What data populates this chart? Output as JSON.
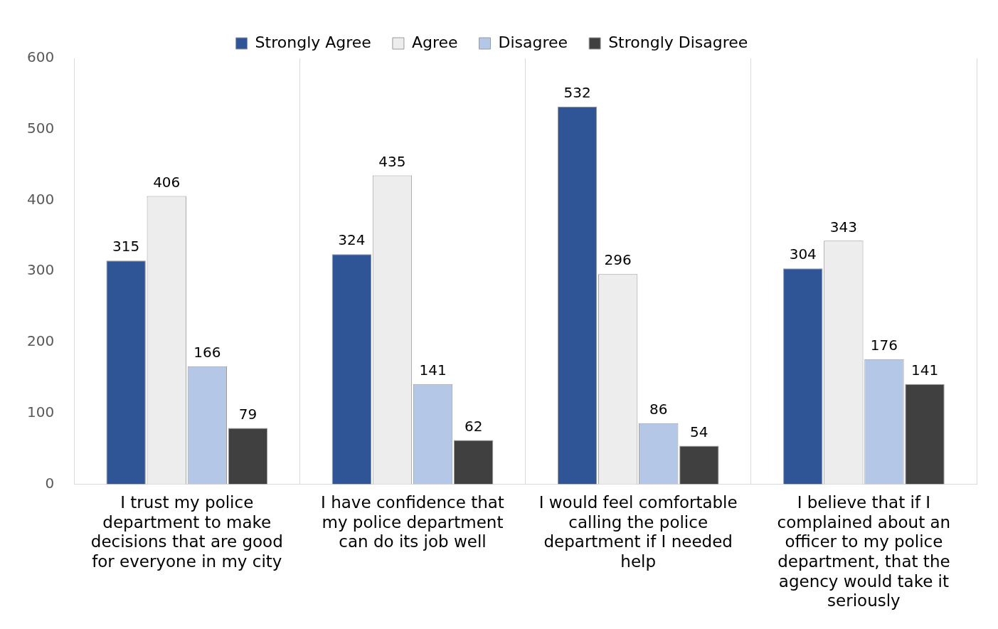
{
  "chart_data": {
    "type": "bar",
    "categories": [
      "I trust my police department to make decisions that are good for everyone in my city",
      "I have confidence that my police department can do its job well",
      "I would feel comfortable calling the police department if I needed help",
      "I believe that if I complained about an officer to my police department, that the agency would take it seriously"
    ],
    "series": [
      {
        "name": "Strongly Agree",
        "color": "#2f5597",
        "values": [
          315,
          324,
          532,
          304
        ]
      },
      {
        "name": "Agree",
        "color": "#ededed",
        "values": [
          406,
          435,
          296,
          343
        ]
      },
      {
        "name": "Disagree",
        "color": "#b4c7e7",
        "values": [
          166,
          141,
          86,
          176
        ]
      },
      {
        "name": "Strongly Disagree",
        "color": "#404040",
        "values": [
          79,
          62,
          54,
          141
        ]
      }
    ],
    "ylim": [
      0,
      600
    ],
    "yticks": [
      0,
      100,
      200,
      300,
      400,
      500,
      600
    ],
    "grid": "x",
    "legend": "top",
    "data_labels": true
  }
}
